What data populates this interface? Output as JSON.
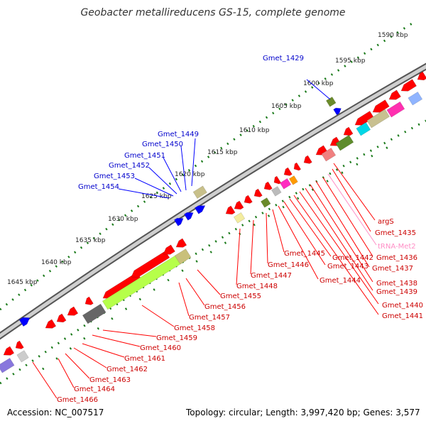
{
  "title": "Geobacter metallireducens GS-15, complete genome",
  "footer": {
    "accession": "Accession: NC_007517",
    "summary": "Topology: circular; Length: 3,997,420 bp; Genes: 3,577"
  },
  "scale": {
    "ticks": [
      {
        "label": "1590 kbp"
      },
      {
        "label": "1595 kbp"
      },
      {
        "label": "1600 kbp"
      },
      {
        "label": "1605 kbp"
      },
      {
        "label": "1610 kbp"
      },
      {
        "label": "1615 kbp"
      },
      {
        "label": "1620 kbp"
      },
      {
        "label": "1625 kbp"
      },
      {
        "label": "1630 kbp"
      },
      {
        "label": "1635 kbp"
      },
      {
        "label": "1640 kbp"
      },
      {
        "label": "1645 kbp"
      }
    ]
  },
  "colors": {
    "forward": "#0000ff",
    "reverse": "#ff0000",
    "trna": "#ff8ec6",
    "backbone": "#777777",
    "ticks": "#1a7a1a"
  },
  "labels": {
    "forward": [
      "Gmet_1429",
      "Gmet_1449",
      "Gmet_1450",
      "Gmet_1451",
      "Gmet_1452",
      "Gmet_1453",
      "Gmet_1454"
    ],
    "reverse": [
      "argS",
      "Gmet_1435",
      "tRNA-Met2",
      "Gmet_1436",
      "Gmet_1437",
      "Gmet_1438",
      "Gmet_1439",
      "Gmet_1440",
      "Gmet_1441",
      "Gmet_1442",
      "Gmet_1443",
      "Gmet_1444",
      "Gmet_1445",
      "Gmet_1446",
      "Gmet_1447",
      "Gmet_1448",
      "Gmet_1455",
      "Gmet_1456",
      "Gmet_1457",
      "Gmet_1458",
      "Gmet_1459",
      "Gmet_1460",
      "Gmet_1461",
      "Gmet_1462",
      "Gmet_1463",
      "Gmet_1464",
      "Gmet_1466"
    ]
  }
}
